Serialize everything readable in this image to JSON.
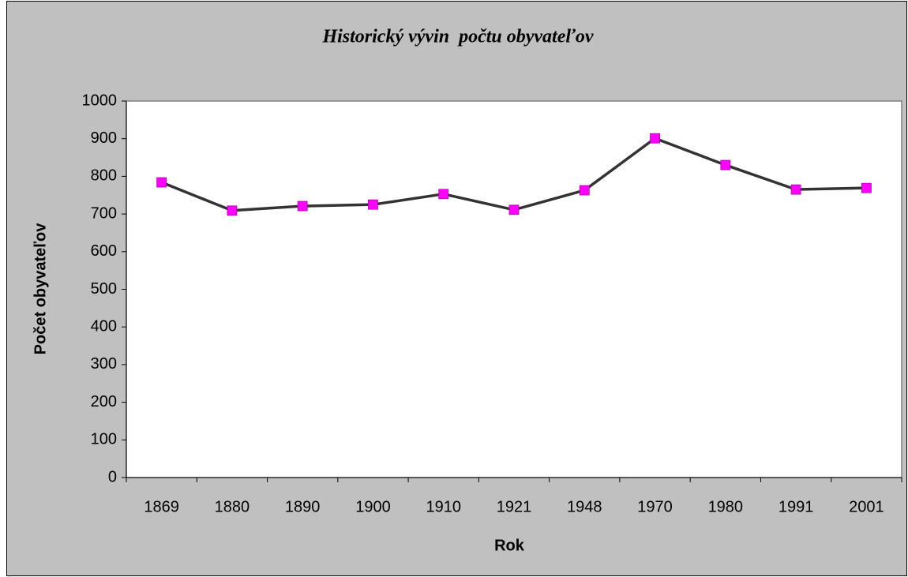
{
  "chart_data": {
    "type": "line",
    "title": "Historický vývin  počtu obyvateľov",
    "x_label": "Rok",
    "y_label": "Počet obyvateľov",
    "categories": [
      "1869",
      "1880",
      "1890",
      "1900",
      "1910",
      "1921",
      "1948",
      "1970",
      "1980",
      "1991",
      "2001"
    ],
    "series": [
      {
        "color": "#333333",
        "marker_color": "#ff00ff",
        "values": [
          784,
          709,
          721,
          725,
          753,
          711,
          763,
          901,
          830,
          765,
          769
        ]
      }
    ],
    "ylim": [
      0,
      1000
    ],
    "yticks": [
      0,
      100,
      200,
      300,
      400,
      500,
      600,
      700,
      800,
      900,
      1000
    ],
    "grid": false
  }
}
